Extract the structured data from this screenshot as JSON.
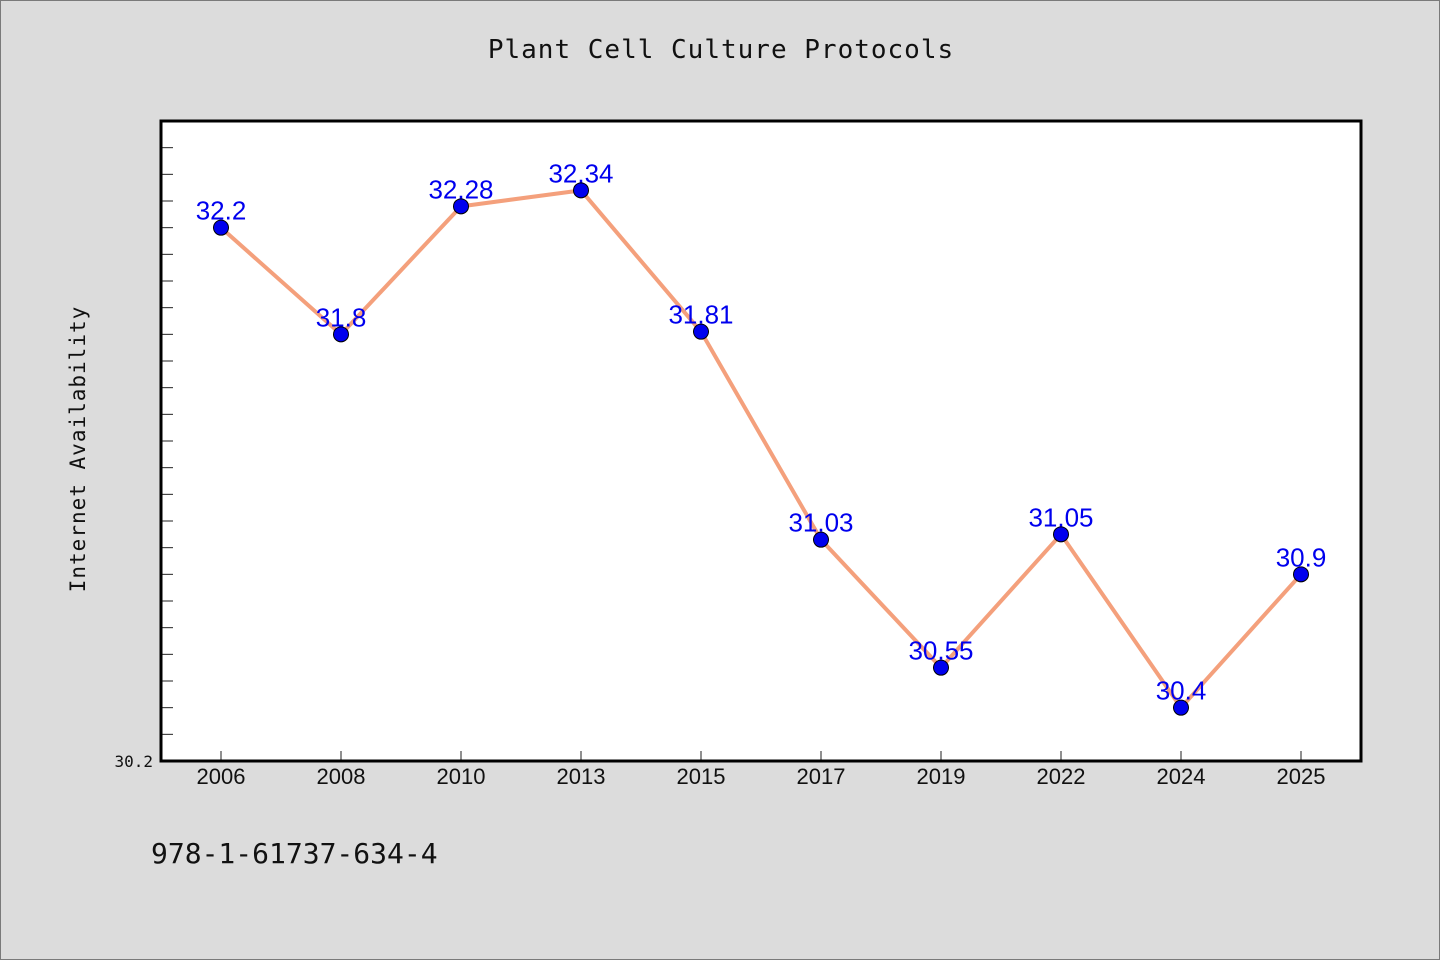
{
  "chart_data": {
    "type": "line",
    "title": "Plant Cell Culture Protocols",
    "xlabel": "",
    "ylabel": "Internet Availability",
    "categories": [
      "2006",
      "2008",
      "2010",
      "2013",
      "2015",
      "2017",
      "2019",
      "2022",
      "2024",
      "2025"
    ],
    "series": [
      {
        "values": [
          32.2,
          31.8,
          32.28,
          32.34,
          31.81,
          31.03,
          30.55,
          31.05,
          30.4,
          30.9
        ],
        "labels": [
          "32.2",
          "31.8",
          "32.28",
          "32.34",
          "31.81",
          "31.03",
          "30.55",
          "31.05",
          "30.4",
          "30.9"
        ]
      }
    ],
    "ylim": [
      30.2,
      32.6
    ],
    "y_min_label": "30.2",
    "grid": false,
    "line_color": "#f4a07c",
    "marker_color": "#0000ee",
    "plot_background": "#ffffff",
    "page_background": "#dcdcdc",
    "footnote": "978-1-61737-634-4"
  }
}
